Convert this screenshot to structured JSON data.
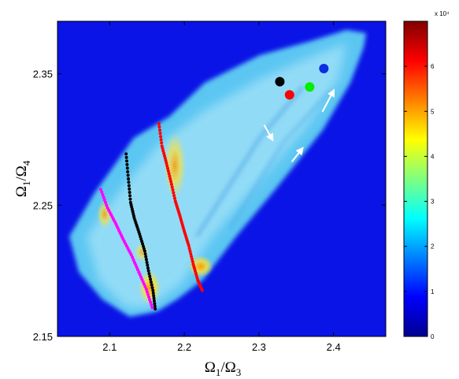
{
  "chart_data": {
    "type": "heatmap",
    "title": "",
    "xlabel": {
      "base": "Ω",
      "sub1": "1",
      "mid": "/Ω",
      "sub2": "3"
    },
    "ylabel": {
      "base": "Ω",
      "sub1": "1",
      "mid": "/Ω",
      "sub2": "4"
    },
    "xlim": [
      2.03,
      2.47
    ],
    "ylim": [
      2.15,
      2.39
    ],
    "x_ticks": [
      2.1,
      2.2,
      2.3,
      2.4
    ],
    "x_tick_labels": [
      "2.1",
      "2.2",
      "2.3",
      "2.4"
    ],
    "y_ticks": [
      2.15,
      2.25,
      2.35
    ],
    "y_tick_labels": [
      "2.15",
      "2.25",
      "2.35"
    ],
    "colorbar": {
      "range": [
        0,
        70000
      ],
      "ticks": [
        0,
        10000,
        20000,
        30000,
        40000,
        50000,
        60000
      ],
      "tick_labels": [
        "0",
        "1",
        "2",
        "3",
        "4",
        "5",
        "6"
      ],
      "exponent_label": "x 10⁴",
      "colormap": "jet"
    },
    "overlay_series": [
      {
        "color": "#000000",
        "points": [
          [
            2.122,
            2.289
          ],
          [
            2.125,
            2.27
          ],
          [
            2.128,
            2.252
          ],
          [
            2.133,
            2.24
          ],
          [
            2.14,
            2.228
          ],
          [
            2.147,
            2.215
          ],
          [
            2.152,
            2.2
          ],
          [
            2.158,
            2.185
          ],
          [
            2.161,
            2.171
          ]
        ]
      },
      {
        "color": "#ff00ff",
        "points": [
          [
            2.088,
            2.262
          ],
          [
            2.097,
            2.248
          ],
          [
            2.108,
            2.236
          ],
          [
            2.118,
            2.224
          ],
          [
            2.129,
            2.212
          ],
          [
            2.139,
            2.199
          ],
          [
            2.149,
            2.186
          ],
          [
            2.157,
            2.172
          ]
        ]
      },
      {
        "color": "#ff0000",
        "points": [
          [
            2.166,
            2.312
          ],
          [
            2.17,
            2.295
          ],
          [
            2.176,
            2.282
          ],
          [
            2.182,
            2.268
          ],
          [
            2.188,
            2.253
          ],
          [
            2.194,
            2.242
          ],
          [
            2.2,
            2.23
          ],
          [
            2.206,
            2.219
          ],
          [
            2.212,
            2.205
          ],
          [
            2.218,
            2.193
          ],
          [
            2.224,
            2.185
          ]
        ]
      }
    ],
    "markers": [
      {
        "color": "#000000",
        "x": 2.328,
        "y": 2.344
      },
      {
        "color": "#ff0000",
        "x": 2.341,
        "y": 2.334
      },
      {
        "color": "#00ee00",
        "x": 2.368,
        "y": 2.34
      },
      {
        "color": "#0a2ee0",
        "x": 2.387,
        "y": 2.354
      }
    ],
    "arrows": [
      {
        "color": "#ffffff",
        "x0": 2.307,
        "y0": 2.311,
        "x1": 2.318,
        "y1": 2.3
      },
      {
        "color": "#ffffff",
        "x0": 2.344,
        "y0": 2.283,
        "x1": 2.358,
        "y1": 2.293
      },
      {
        "color": "#ffffff",
        "x0": 2.385,
        "y0": 2.321,
        "x1": 2.4,
        "y1": 2.337
      }
    ]
  }
}
